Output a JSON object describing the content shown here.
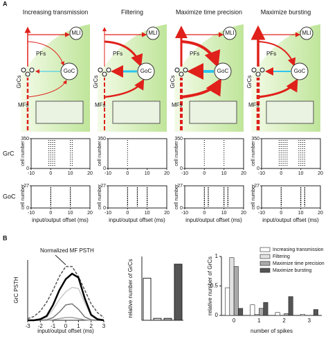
{
  "panel_labels": [
    "A",
    "B"
  ],
  "panel_a": {
    "labels": {
      "mli": "MLI",
      "goc": "GoC",
      "pfs": "PFs",
      "grcs": "GrCs",
      "mfs": "MFs"
    },
    "row_labels": [
      "GrC",
      "GoC"
    ],
    "raster": {
      "xlim": [
        -10,
        20
      ],
      "xticks": [
        -10,
        0,
        10,
        20
      ],
      "grc_ylim": [
        0,
        350
      ],
      "grc_yticks": [
        0,
        350
      ],
      "goc_ylim": [
        0,
        27
      ],
      "goc_yticks": [
        0,
        27
      ],
      "ylabel": "cell number",
      "xlabel": "input/output offset (ms)"
    },
    "columns": [
      {
        "title": "Increasing transmission",
        "grc_bursts": [
          -1,
          0,
          1,
          2,
          10,
          11
        ],
        "goc_bursts": [
          0,
          10
        ]
      },
      {
        "title": "Filtering",
        "grc_bursts": [
          0
        ],
        "goc_bursts": [
          0,
          5,
          10
        ]
      },
      {
        "title": "Maximize time precision",
        "grc_bursts": [
          0,
          10
        ],
        "goc_bursts": [
          0,
          2,
          10,
          12
        ]
      },
      {
        "title": "Maximize bursting",
        "grc_bursts": [
          -1,
          0,
          1,
          2,
          3,
          9,
          10,
          11,
          12
        ],
        "goc_bursts": [
          0,
          10,
          12
        ]
      }
    ]
  },
  "chart_data": [
    {
      "type": "line",
      "ylabel": "GrC PSTH",
      "xlabel": "input/output offset (ms)",
      "annotation": "Normalized MF PSTH",
      "x": [
        -3,
        -2.5,
        -2,
        -1.5,
        -1,
        -0.5,
        0,
        0.5,
        1,
        1.5,
        2,
        2.5,
        3
      ],
      "xlim": [
        -3,
        3
      ],
      "xticks": [
        -3,
        -2,
        -1,
        0,
        1,
        2,
        3
      ],
      "ylim": [
        0,
        1.1
      ],
      "series": [
        {
          "color": "#555555",
          "dashed": true,
          "values": [
            0.03,
            0.07,
            0.17,
            0.33,
            0.55,
            0.8,
            0.98,
            0.98,
            0.8,
            0.55,
            0.3,
            0.14,
            0.05
          ]
        },
        {
          "color": "#c8c8c8",
          "values": [
            0,
            0,
            0.01,
            0.05,
            0.2,
            0.38,
            0.52,
            0.6,
            0.58,
            0.32,
            0.08,
            0.01,
            0
          ]
        },
        {
          "color": "#a0a0a0",
          "values": [
            0,
            0,
            0,
            0,
            0.01,
            0.03,
            0.05,
            0.05,
            0.03,
            0.01,
            0,
            0,
            0
          ]
        },
        {
          "color": "#777777",
          "values": [
            0,
            0,
            0,
            0.01,
            0.05,
            0.15,
            0.28,
            0.3,
            0.2,
            0.06,
            0.01,
            0,
            0
          ]
        },
        {
          "color": "#000000",
          "values": [
            0,
            0,
            0.02,
            0.08,
            0.28,
            0.55,
            0.75,
            0.85,
            0.78,
            0.4,
            0.1,
            0.02,
            0
          ]
        }
      ]
    },
    {
      "type": "bar",
      "ylabel": "relative number of GrCs",
      "ylim": [
        0,
        1
      ],
      "values": [
        0.66,
        0.03,
        0.03,
        0.88
      ],
      "colors": [
        "#ffffff",
        "#e2e2e2",
        "#aaaaaa",
        "#555555"
      ]
    },
    {
      "type": "grouped-bar",
      "ylabel": "relative number of GrCs",
      "xlabel": "number of spikes",
      "categories": [
        0,
        1,
        2,
        3
      ],
      "ylim": [
        0,
        1
      ],
      "yticks": [
        0,
        0.5,
        1
      ],
      "series": [
        {
          "name": "Increasing transmission",
          "color": "#ffffff",
          "values": [
            0.47,
            0.18,
            0.05,
            0.02
          ]
        },
        {
          "name": "Filtering",
          "color": "#e2e2e2",
          "values": [
            0.98,
            0.02,
            0,
            0
          ]
        },
        {
          "name": "Maximize time precision",
          "color": "#aaaaaa",
          "values": [
            0.83,
            0.12,
            0.03,
            0
          ]
        },
        {
          "name": "Maximize bursting",
          "color": "#555555",
          "values": [
            0.12,
            0.22,
            0.32,
            0.1
          ]
        }
      ]
    }
  ]
}
